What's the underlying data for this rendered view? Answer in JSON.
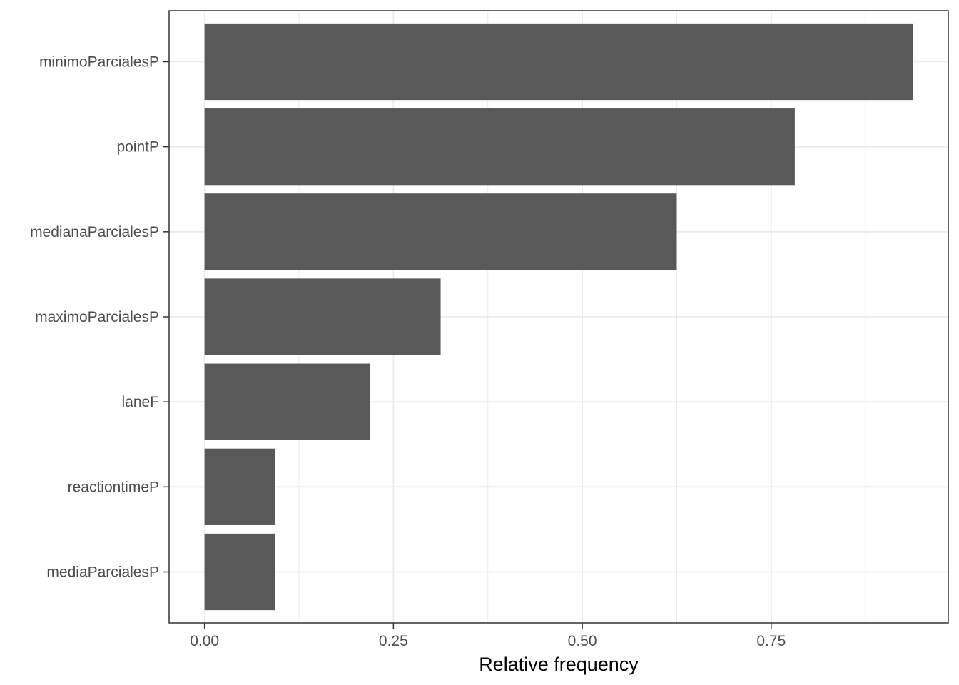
{
  "chart_data": {
    "type": "bar",
    "orientation": "horizontal",
    "categories": [
      "minimoParcialesP",
      "pointP",
      "medianaParcialesP",
      "maximoParcialesP",
      "laneF",
      "reactiontimeP",
      "mediaParcialesP"
    ],
    "values": [
      0.9375,
      0.78125,
      0.625,
      0.3125,
      0.21875,
      0.09375,
      0.09375
    ],
    "title": "",
    "xlabel": "Relative frequency",
    "ylabel": "",
    "xlim": [
      -0.046875,
      0.984375
    ],
    "x_ticks": [
      0.0,
      0.25,
      0.5,
      0.75
    ],
    "x_tick_labels": [
      "0.00",
      "0.25",
      "0.50",
      "0.75"
    ],
    "grid": true,
    "legend": "none",
    "colors": {
      "bar": "#595959",
      "grid": "#ebebeb",
      "panel_border": "#333333",
      "text": "#4d4d4d"
    }
  }
}
